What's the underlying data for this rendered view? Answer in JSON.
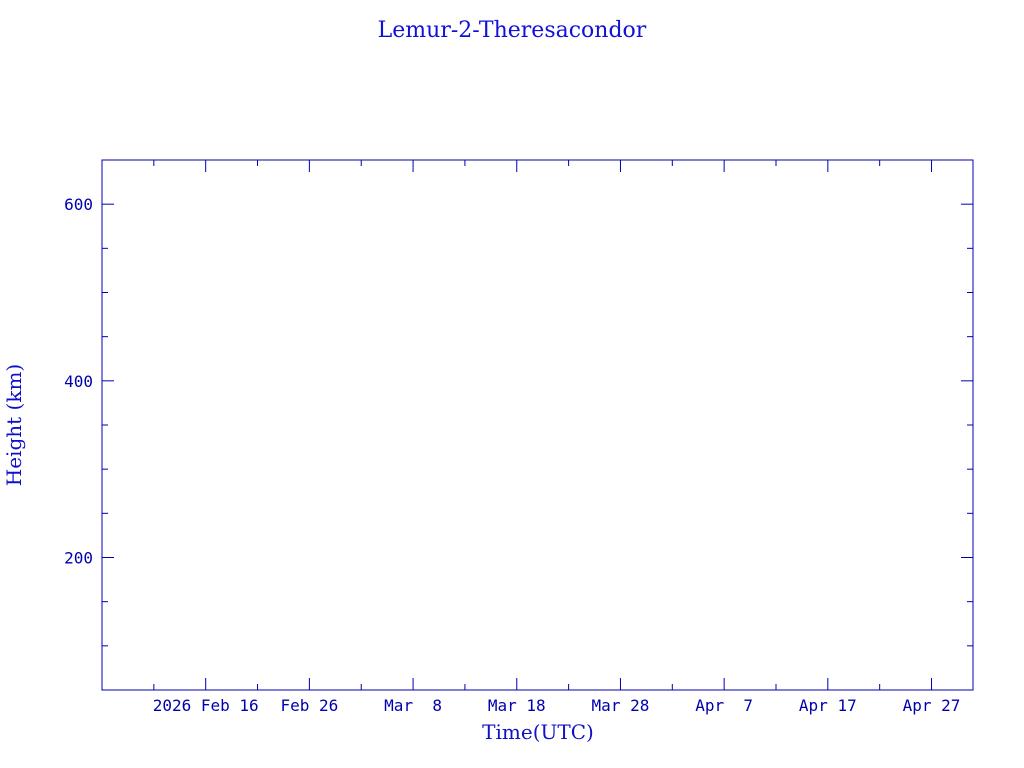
{
  "chart_data": {
    "type": "line",
    "title": "Lemur-2-Theresacondor",
    "xlabel": "Time(UTC)",
    "ylabel": "Height (km)",
    "xlim": [
      "2026-02-06",
      "2026-05-01"
    ],
    "ylim": [
      50,
      650
    ],
    "x_tick_labels": [
      "2026 Feb 16",
      "Feb 26",
      "Mar  8",
      "Mar 18",
      "Mar 28",
      "Apr  7",
      "Apr 17",
      "Apr 27"
    ],
    "x_tick_dates": [
      "2026-02-16",
      "2026-02-26",
      "2026-03-08",
      "2026-03-18",
      "2026-03-28",
      "2026-04-07",
      "2026-04-17",
      "2026-04-27"
    ],
    "y_tick_labels": [
      "200",
      "400",
      "600"
    ],
    "y_ticks": [
      200,
      400,
      600
    ],
    "series": [],
    "grid": false,
    "colors": {
      "axes": "#0000b0",
      "title": "#1010d8"
    }
  }
}
